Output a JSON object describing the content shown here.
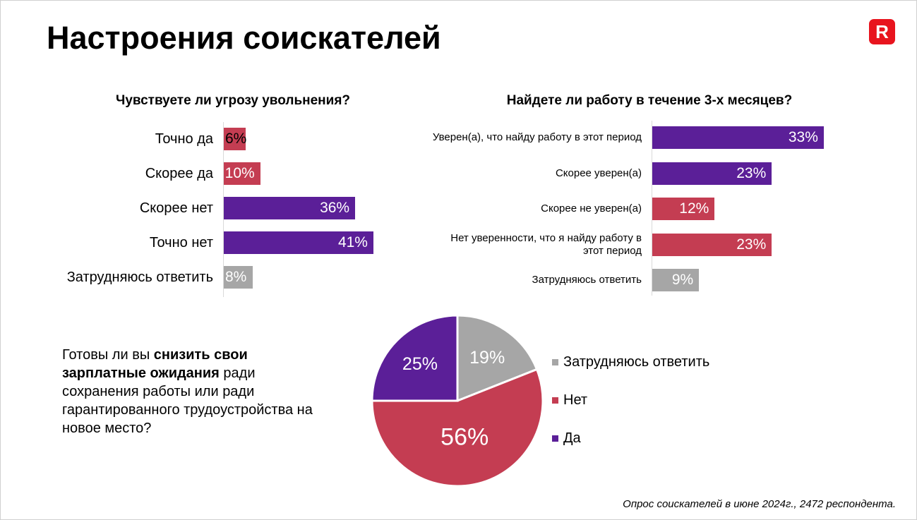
{
  "title": "Настроения соискателей",
  "logo": "R",
  "colors": {
    "purple": "#5b1f98",
    "red": "#c43d52",
    "gray": "#a6a6a6"
  },
  "chart_data": [
    {
      "type": "bar",
      "orientation": "horizontal",
      "title": "Чувствуете ли угрозу увольнения?",
      "categories": [
        "Точно да",
        "Скорее да",
        "Скорее нет",
        "Точно нет",
        "Затрудняюсь ответить"
      ],
      "values": [
        6,
        10,
        36,
        41,
        8
      ],
      "labels": [
        "6%",
        "10%",
        "36%",
        "41%",
        "8%"
      ],
      "colors": [
        "red",
        "red",
        "purple",
        "purple",
        "gray"
      ],
      "unit": "%"
    },
    {
      "type": "bar",
      "orientation": "horizontal",
      "title": "Найдете ли работу в течение 3-х месяцев?",
      "categories": [
        "Уверен(а), что найду работу в этот период",
        "Скорее уверен(а)",
        "Скорее не уверен(а)",
        "Нет уверенности, что я найду работу в этот период",
        "Затрудняюсь ответить"
      ],
      "values": [
        33,
        23,
        12,
        23,
        9
      ],
      "labels": [
        "33%",
        "23%",
        "12%",
        "23%",
        "9%"
      ],
      "colors": [
        "purple",
        "purple",
        "red",
        "red",
        "gray"
      ],
      "unit": "%"
    },
    {
      "type": "pie",
      "title": "",
      "categories": [
        "Затрудняюсь ответить",
        "Нет",
        "Да"
      ],
      "values": [
        19,
        56,
        25
      ],
      "labels": [
        "19%",
        "56%",
        "25%"
      ],
      "colors": [
        "gray",
        "red",
        "purple"
      ],
      "legend": "right"
    }
  ],
  "question": {
    "pre": "Готовы ли вы ",
    "bold": "снизить свои зарплатные ожидания",
    "post": " ради сохранения работы или ради гарантированного трудоустройства на новое место?"
  },
  "note": "Опрос соискателей в июне 2024г., 2472 респондента."
}
